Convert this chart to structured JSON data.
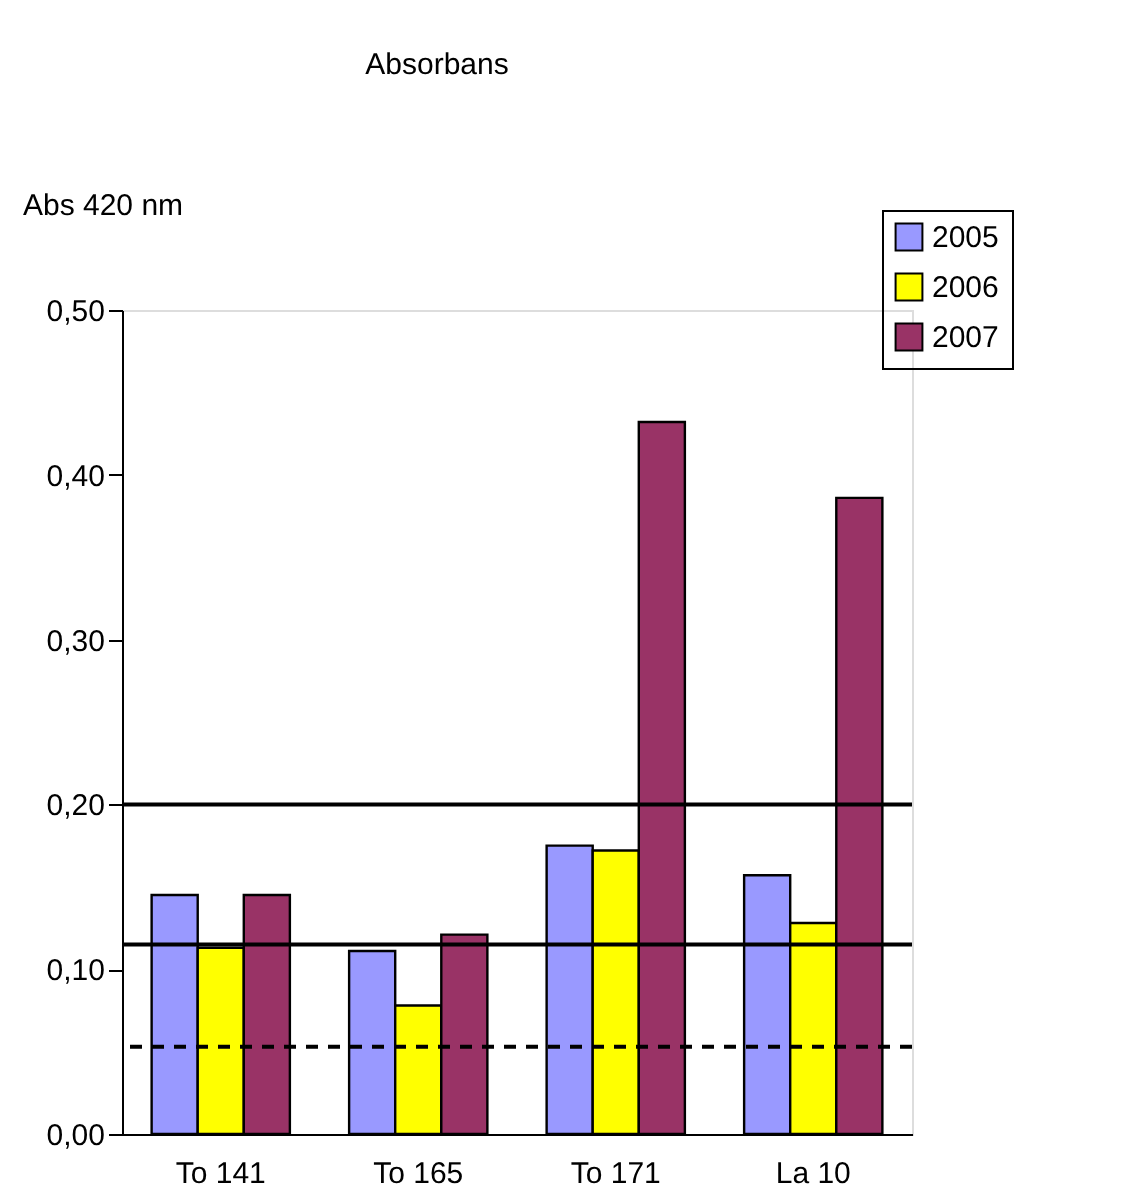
{
  "chart_data": {
    "type": "bar",
    "title": "Absorbans",
    "ylabel": "Abs 420 nm",
    "categories": [
      "To 141",
      "To 165",
      "To 171",
      "La 10"
    ],
    "series": [
      {
        "name": "2005",
        "color": "#9999ff",
        "values": [
          0.145,
          0.111,
          0.175,
          0.157
        ]
      },
      {
        "name": "2006",
        "color": "#ffff00",
        "values": [
          0.113,
          0.078,
          0.172,
          0.128
        ]
      },
      {
        "name": "2007",
        "color": "#993366",
        "values": [
          0.145,
          0.121,
          0.432,
          0.386
        ]
      }
    ],
    "ylim": [
      0,
      0.5
    ],
    "yticks": [
      {
        "value": 0,
        "label": "0,00"
      },
      {
        "value": 0.1,
        "label": "0,10"
      },
      {
        "value": 0.2,
        "label": "0,20"
      },
      {
        "value": 0.3,
        "label": "0,30"
      },
      {
        "value": 0.4,
        "label": "0,40"
      },
      {
        "value": 0.5,
        "label": "0,50"
      }
    ],
    "ref_lines": [
      {
        "axis": "y",
        "value": 0.2,
        "color": "#000000",
        "line_style": "solid"
      },
      {
        "axis": "y",
        "value": 0.115,
        "color": "#000000",
        "line_style": "solid"
      },
      {
        "axis": "y",
        "value": 0.053,
        "color": "#000000",
        "line_style": "dashed"
      }
    ],
    "grid": false,
    "legend": "top right"
  }
}
